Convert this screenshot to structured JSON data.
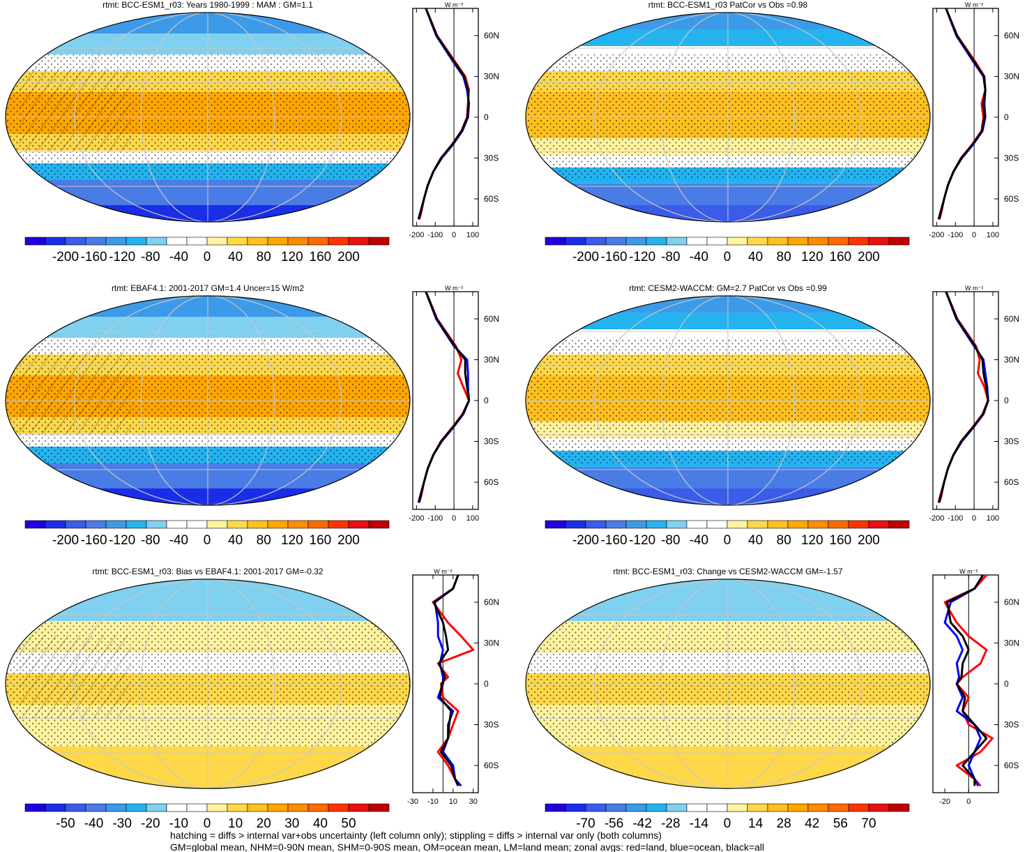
{
  "footer": {
    "line1": "hatching = diffs > internal var+obs uncertainty (left column only); stippling = diffs > internal var only (both columns)",
    "line2": "GM=global mean, NHM=0-90N mean, SHM=0-90S mean, OM=ocean mean, LM=land mean; zonal avgs: red=land, blue=ocean, black=all"
  },
  "colors": {
    "red_series": "#ff0000",
    "blue_series": "#0000ff",
    "black_series": "#000000",
    "palette": [
      "#2000e0",
      "#1a2ee8",
      "#3a5ce8",
      "#4a7ce6",
      "#3d9ae8",
      "#25b3f0",
      "#80d0f0",
      "#ffffff",
      "#ffffff",
      "#fff3a0",
      "#ffd84a",
      "#ffc020",
      "#ffa600",
      "#ff8c00",
      "#ff6a00",
      "#ff3300",
      "#e81010",
      "#c00000"
    ]
  },
  "chart_data": [
    {
      "type": "heatmap",
      "title": "rtmt: BCC-ESM1_r03: Years 1980-1999 : MAM : GM=1.1",
      "colorbar_labels": [
        "-200",
        "-160",
        "-120",
        "-80",
        "-40",
        "0",
        "40",
        "80",
        "120",
        "160",
        "200"
      ],
      "colorbar_range": [
        -200,
        200
      ],
      "hatching": true,
      "stippling": true,
      "zonal": {
        "unit": "W m⁻²",
        "xticks": [
          "-200",
          "-100",
          "0",
          "100"
        ],
        "xlim": [
          -220,
          130
        ],
        "lat_labels": [
          "60N",
          "30N",
          "0",
          "30S",
          "60S"
        ],
        "lat": [
          80,
          60,
          40,
          30,
          20,
          10,
          0,
          -10,
          -20,
          -30,
          -40,
          -50,
          -60,
          -70,
          -75
        ],
        "series": [
          {
            "color": "red",
            "values": [
              -150,
              -90,
              10,
              60,
              80,
              75,
              70,
              40,
              -10,
              -70,
              -110,
              -140,
              -160,
              -175,
              -185
            ]
          },
          {
            "color": "blue",
            "values": [
              -150,
              -95,
              0,
              50,
              70,
              80,
              75,
              45,
              -5,
              -65,
              -110,
              -140,
              -160,
              -180,
              -190
            ]
          },
          {
            "color": "black",
            "values": [
              -150,
              -92,
              5,
              55,
              75,
              78,
              72,
              42,
              -8,
              -68,
              -110,
              -140,
              -160,
              -178,
              -188
            ]
          }
        ]
      }
    },
    {
      "type": "heatmap",
      "title": "rtmt: BCC-ESM1_r03 PatCor vs Obs =0.98",
      "colorbar_labels": [
        "-200",
        "-160",
        "-120",
        "-80",
        "-40",
        "0",
        "40",
        "80",
        "120",
        "160",
        "200"
      ],
      "colorbar_range": [
        -200,
        200
      ],
      "hatching": false,
      "stippling": true,
      "zonal": {
        "unit": "W m⁻²",
        "xticks": [
          "-200",
          "-100",
          "0",
          "100"
        ],
        "xlim": [
          -220,
          130
        ],
        "lat_labels": [
          "60N",
          "30N",
          "0",
          "30S",
          "60S"
        ],
        "lat": [
          80,
          60,
          40,
          30,
          20,
          10,
          0,
          -10,
          -20,
          -30,
          -40,
          -50,
          -60,
          -70,
          -75
        ],
        "series": [
          {
            "color": "red",
            "values": [
              -150,
              -90,
              10,
              55,
              60,
              40,
              50,
              40,
              -10,
              -70,
              -110,
              -140,
              -160,
              -175,
              -185
            ]
          },
          {
            "color": "blue",
            "values": [
              -150,
              -95,
              0,
              50,
              60,
              55,
              60,
              45,
              -5,
              -65,
              -110,
              -140,
              -160,
              -180,
              -190
            ]
          },
          {
            "color": "black",
            "values": [
              -150,
              -92,
              5,
              52,
              60,
              50,
              55,
              42,
              -8,
              -68,
              -110,
              -140,
              -160,
              -178,
              -188
            ]
          }
        ]
      }
    },
    {
      "type": "heatmap",
      "title": "rtmt: EBAF4.1: 2001-2017 GM=1.4 Uncer=15 W/m2",
      "colorbar_labels": [
        "-200",
        "-160",
        "-120",
        "-80",
        "-40",
        "0",
        "40",
        "80",
        "120",
        "160",
        "200"
      ],
      "colorbar_range": [
        -200,
        200
      ],
      "hatching": true,
      "stippling": true,
      "zonal": {
        "unit": "W m⁻²",
        "xticks": [
          "-200",
          "-100",
          "0",
          "100"
        ],
        "xlim": [
          -220,
          130
        ],
        "lat_labels": [
          "60N",
          "30N",
          "0",
          "30S",
          "60S"
        ],
        "lat": [
          80,
          60,
          40,
          30,
          20,
          10,
          0,
          -10,
          -20,
          -30,
          -40,
          -50,
          -60,
          -70,
          -75
        ],
        "series": [
          {
            "color": "red",
            "values": [
              -150,
              -90,
              10,
              40,
              20,
              50,
              80,
              45,
              -10,
              -70,
              -110,
              -140,
              -160,
              -175,
              -185
            ]
          },
          {
            "color": "blue",
            "values": [
              -150,
              -95,
              0,
              70,
              75,
              75,
              80,
              50,
              -5,
              -65,
              -110,
              -140,
              -160,
              -180,
              -190
            ]
          },
          {
            "color": "black",
            "values": [
              -150,
              -92,
              5,
              60,
              60,
              70,
              80,
              48,
              -8,
              -68,
              -110,
              -140,
              -160,
              -178,
              -188
            ]
          }
        ]
      }
    },
    {
      "type": "heatmap",
      "title": "rtmt: CESM2-WACCM: GM=2.7 PatCor vs Obs =0.99",
      "colorbar_labels": [
        "-200",
        "-160",
        "-120",
        "-80",
        "-40",
        "0",
        "40",
        "80",
        "120",
        "160",
        "200"
      ],
      "colorbar_range": [
        -200,
        200
      ],
      "hatching": false,
      "stippling": true,
      "zonal": {
        "unit": "W m⁻²",
        "xticks": [
          "-200",
          "-100",
          "0",
          "100"
        ],
        "xlim": [
          -220,
          130
        ],
        "lat_labels": [
          "60N",
          "30N",
          "0",
          "30S",
          "60S"
        ],
        "lat": [
          80,
          60,
          40,
          30,
          20,
          10,
          0,
          -10,
          -20,
          -30,
          -40,
          -50,
          -60,
          -70,
          -75
        ],
        "series": [
          {
            "color": "red",
            "values": [
              -150,
              -90,
              10,
              30,
              20,
              55,
              75,
              45,
              -10,
              -70,
              -110,
              -140,
              -160,
              -175,
              -185
            ]
          },
          {
            "color": "blue",
            "values": [
              -150,
              -95,
              0,
              50,
              60,
              70,
              75,
              50,
              -5,
              -65,
              -110,
              -140,
              -160,
              -180,
              -190
            ]
          },
          {
            "color": "black",
            "values": [
              -150,
              -92,
              5,
              45,
              50,
              65,
              75,
              48,
              -8,
              -68,
              -110,
              -140,
              -160,
              -178,
              -188
            ]
          }
        ]
      }
    },
    {
      "type": "heatmap",
      "title": "rtmt: BCC-ESM1_r03: Bias vs EBAF4.1: 2001-2017 GM=-0.32",
      "colorbar_labels": [
        "-50",
        "-40",
        "-30",
        "-20",
        "-10",
        "0",
        "10",
        "20",
        "30",
        "40",
        "50"
      ],
      "colorbar_range": [
        -50,
        50
      ],
      "hatching": true,
      "stippling": true,
      "zonal": {
        "unit": "W m⁻²",
        "xticks": [
          "-30",
          "-10",
          "10",
          "30"
        ],
        "xlim": [
          -30,
          35
        ],
        "lat_labels": [
          "60N",
          "30N",
          "0",
          "30S",
          "60S"
        ],
        "lat": [
          80,
          70,
          60,
          45,
          35,
          25,
          15,
          5,
          0,
          -10,
          -20,
          -30,
          -40,
          -50,
          -60,
          -70,
          -75
        ],
        "series": [
          {
            "color": "red",
            "values": [
              15,
              10,
              -10,
              5,
              18,
              30,
              -5,
              5,
              -2,
              0,
              15,
              10,
              5,
              -5,
              5,
              12,
              15
            ]
          },
          {
            "color": "blue",
            "values": [
              15,
              10,
              -8,
              -5,
              -5,
              0,
              -3,
              0,
              0,
              -5,
              10,
              5,
              5,
              0,
              10,
              12,
              18
            ]
          },
          {
            "color": "black",
            "values": [
              15,
              10,
              -9,
              0,
              3,
              5,
              -4,
              2,
              -1,
              -3,
              8,
              6,
              5,
              -2,
              8,
              12,
              15
            ]
          }
        ]
      }
    },
    {
      "type": "heatmap",
      "title": "rtmt: BCC-ESM1_r03: Change vs CESM2-WACCM GM=-1.57",
      "colorbar_labels": [
        "-70",
        "-56",
        "-42",
        "-28",
        "-14",
        "0",
        "14",
        "28",
        "42",
        "56",
        "70"
      ],
      "colorbar_range": [
        -70,
        70
      ],
      "hatching": false,
      "stippling": true,
      "zonal": {
        "unit": "W m⁻²",
        "xticks": [
          "-20",
          "0"
        ],
        "xlim": [
          -30,
          25
        ],
        "lat_labels": [
          "60N",
          "30N",
          "0",
          "30S",
          "60S"
        ],
        "lat": [
          80,
          70,
          60,
          45,
          35,
          25,
          15,
          5,
          0,
          -10,
          -20,
          -30,
          -40,
          -50,
          -60,
          -70,
          -75
        ],
        "series": [
          {
            "color": "red",
            "values": [
              15,
              5,
              -20,
              -10,
              0,
              15,
              10,
              -5,
              -10,
              0,
              -5,
              0,
              20,
              10,
              -10,
              5,
              10
            ]
          },
          {
            "color": "blue",
            "values": [
              12,
              5,
              -15,
              -20,
              -10,
              -5,
              -10,
              -8,
              -10,
              -5,
              -10,
              5,
              10,
              5,
              0,
              5,
              8
            ]
          },
          {
            "color": "black",
            "values": [
              12,
              5,
              -18,
              -15,
              -5,
              0,
              -5,
              -6,
              -10,
              -3,
              -5,
              5,
              15,
              5,
              -5,
              5,
              5
            ]
          }
        ]
      }
    }
  ]
}
